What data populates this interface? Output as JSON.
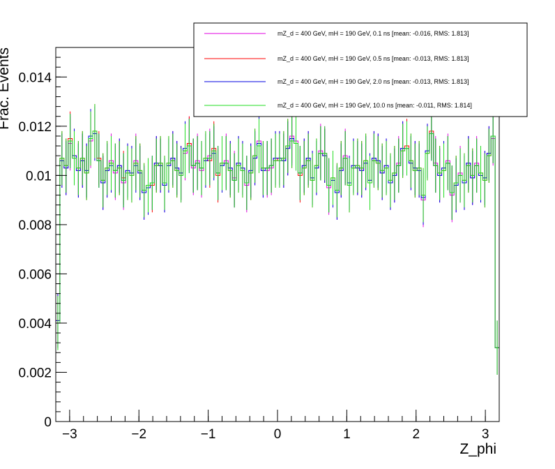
{
  "chart_data": {
    "type": "histogram",
    "xlabel": "Z_phi",
    "ylabel": "Frac. Events",
    "xlim": [
      -3.2,
      3.2
    ],
    "ylim": [
      0,
      0.0152
    ],
    "x_ticks": [
      -3,
      -2,
      -1,
      0,
      1,
      2,
      3
    ],
    "y_ticks": [
      0,
      0.002,
      0.004,
      0.006,
      0.008,
      0.01,
      0.012,
      0.014
    ],
    "y_tick_labels": [
      "0",
      "0.002",
      "0.004",
      "0.006",
      "0.008",
      "0.01",
      "0.012",
      "0.014"
    ],
    "legend_position": "top-right",
    "error_bar": 0.0011,
    "bin_edges_range": [
      -3.2,
      3.2
    ],
    "series": [
      {
        "name": "mZ_d = 400 GeV, mH = 190 GeV, 0.1 ns [mean: -0.016, RMS: 1.813]",
        "color": "#e000e0",
        "values": [
          0.0041,
          0.0106,
          0.0103,
          0.0113,
          0.0107,
          0.0102,
          0.0106,
          0.0102,
          0.0114,
          0.0117,
          0.0106,
          0.0097,
          0.0102,
          0.0106,
          0.0101,
          0.0104,
          0.0097,
          0.0102,
          0.0101,
          0.0106,
          0.0101,
          0.0093,
          0.0095,
          0.0097,
          0.0105,
          0.0104,
          0.0096,
          0.0104,
          0.0107,
          0.0103,
          0.01,
          0.0109,
          0.0113,
          0.0103,
          0.0106,
          0.0102,
          0.0106,
          0.0108,
          0.011,
          0.0101,
          0.0104,
          0.0106,
          0.0103,
          0.0099,
          0.0105,
          0.0103,
          0.0096,
          0.0102,
          0.0107,
          0.0114,
          0.0102,
          0.0102,
          0.0103,
          0.0107,
          0.0106,
          0.0106,
          0.0111,
          0.0116,
          0.0114,
          0.0101,
          0.0104,
          0.0107,
          0.0099,
          0.0103,
          0.011,
          0.0109,
          0.0095,
          0.0098,
          0.0093,
          0.0102,
          0.0108,
          0.0097,
          0.0104,
          0.0103,
          0.0102,
          0.0105,
          0.0098,
          0.0107,
          0.0106,
          0.0101,
          0.0104,
          0.0097,
          0.01,
          0.0105,
          0.0111,
          0.0111,
          0.0105,
          0.0103,
          0.0102,
          0.009,
          0.011,
          0.0117,
          0.0105,
          0.01,
          0.0103,
          0.0106,
          0.0092,
          0.0096,
          0.0101,
          0.0097,
          0.0105,
          0.0099,
          0.0105,
          0.01,
          0.0099,
          0.0109,
          0.0115,
          0.003
        ]
      },
      {
        "name": "mZ_d = 400 GeV, mH = 190 GeV, 0.5 ns [mean: -0.013, RMS: 1.813]",
        "color": "#ff0000",
        "values": [
          0.0041,
          0.0107,
          0.0104,
          0.0115,
          0.0108,
          0.0103,
          0.0107,
          0.0101,
          0.0115,
          0.0118,
          0.0107,
          0.0098,
          0.0103,
          0.0105,
          0.0102,
          0.0103,
          0.0099,
          0.0101,
          0.01,
          0.0105,
          0.0102,
          0.0094,
          0.0096,
          0.0096,
          0.0104,
          0.0105,
          0.0097,
          0.0105,
          0.0106,
          0.0102,
          0.0101,
          0.011,
          0.0113,
          0.0104,
          0.0105,
          0.0103,
          0.0107,
          0.0106,
          0.0111,
          0.01,
          0.0105,
          0.0105,
          0.0102,
          0.0098,
          0.0104,
          0.0102,
          0.0097,
          0.0101,
          0.0108,
          0.0112,
          0.0103,
          0.0103,
          0.0104,
          0.0106,
          0.0107,
          0.0107,
          0.0112,
          0.0114,
          0.0113,
          0.01,
          0.0103,
          0.0106,
          0.0098,
          0.0104,
          0.0109,
          0.0108,
          0.0096,
          0.0099,
          0.0094,
          0.0103,
          0.0107,
          0.0096,
          0.0103,
          0.0104,
          0.0103,
          0.0106,
          0.0097,
          0.0106,
          0.0105,
          0.0102,
          0.0103,
          0.0098,
          0.0101,
          0.0104,
          0.011,
          0.0112,
          0.0106,
          0.0102,
          0.0103,
          0.0092,
          0.0109,
          0.0118,
          0.0104,
          0.0101,
          0.0102,
          0.0105,
          0.0093,
          0.0097,
          0.01,
          0.0098,
          0.0104,
          0.01,
          0.0104,
          0.0101,
          0.0098,
          0.0108,
          0.0116,
          0.003
        ]
      },
      {
        "name": "mZ_d = 400 GeV, mH = 190 GeV, 2.0 ns [mean: -0.013, RMS: 1.813]",
        "color": "#0000e0",
        "values": [
          0.0041,
          0.0106,
          0.0103,
          0.0114,
          0.0108,
          0.0102,
          0.0106,
          0.0102,
          0.0116,
          0.0117,
          0.0106,
          0.0097,
          0.0102,
          0.0104,
          0.0102,
          0.0104,
          0.0098,
          0.0102,
          0.0101,
          0.0104,
          0.0101,
          0.0093,
          0.0095,
          0.0097,
          0.0105,
          0.0104,
          0.0096,
          0.0104,
          0.0107,
          0.0103,
          0.0101,
          0.0111,
          0.0112,
          0.0104,
          0.0105,
          0.0103,
          0.0106,
          0.0107,
          0.0109,
          0.0101,
          0.0104,
          0.0105,
          0.0103,
          0.0098,
          0.0105,
          0.0103,
          0.0097,
          0.0102,
          0.0107,
          0.0113,
          0.0102,
          0.0103,
          0.0104,
          0.0107,
          0.0107,
          0.0106,
          0.0111,
          0.0115,
          0.0113,
          0.0101,
          0.0104,
          0.0107,
          0.0099,
          0.0103,
          0.0109,
          0.0108,
          0.0096,
          0.0098,
          0.0093,
          0.0102,
          0.0107,
          0.0097,
          0.0104,
          0.0103,
          0.0102,
          0.0105,
          0.0098,
          0.0107,
          0.0106,
          0.0101,
          0.0104,
          0.0097,
          0.01,
          0.0104,
          0.0111,
          0.0111,
          0.0105,
          0.0103,
          0.0102,
          0.0091,
          0.011,
          0.0117,
          0.0104,
          0.01,
          0.0103,
          0.0105,
          0.0093,
          0.0096,
          0.01,
          0.0097,
          0.0105,
          0.0099,
          0.0104,
          0.01,
          0.0099,
          0.0109,
          0.0116,
          0.003
        ]
      },
      {
        "name": "mZ_d = 400 GeV, mH = 190 GeV, 10.0 ns [mean: -0.011, RMS: 1.814]",
        "color": "#22dd22",
        "values": [
          0.004,
          0.0107,
          0.0104,
          0.0114,
          0.0107,
          0.0103,
          0.0107,
          0.0101,
          0.0115,
          0.0118,
          0.0106,
          0.0098,
          0.0103,
          0.0105,
          0.0102,
          0.0103,
          0.0098,
          0.0101,
          0.01,
          0.0105,
          0.0102,
          0.0094,
          0.0096,
          0.0097,
          0.0104,
          0.0105,
          0.0097,
          0.0105,
          0.0106,
          0.0102,
          0.01,
          0.011,
          0.0112,
          0.0104,
          0.0105,
          0.0103,
          0.0107,
          0.0107,
          0.011,
          0.0101,
          0.0105,
          0.0105,
          0.0102,
          0.0098,
          0.0104,
          0.0102,
          0.0097,
          0.0101,
          0.0108,
          0.0112,
          0.0103,
          0.0103,
          0.0104,
          0.0106,
          0.0106,
          0.0107,
          0.0112,
          0.0114,
          0.0113,
          0.0101,
          0.0103,
          0.0106,
          0.0098,
          0.0104,
          0.0109,
          0.0109,
          0.0096,
          0.0099,
          0.0094,
          0.0103,
          0.0107,
          0.0096,
          0.0103,
          0.0104,
          0.0103,
          0.0106,
          0.0097,
          0.0106,
          0.0105,
          0.0102,
          0.0103,
          0.0098,
          0.0101,
          0.0104,
          0.011,
          0.0111,
          0.0106,
          0.0102,
          0.0103,
          0.0092,
          0.0109,
          0.0117,
          0.0104,
          0.0101,
          0.0102,
          0.0105,
          0.0093,
          0.0097,
          0.01,
          0.0098,
          0.0104,
          0.01,
          0.0104,
          0.0101,
          0.0098,
          0.0108,
          0.0116,
          0.003
        ]
      }
    ]
  }
}
